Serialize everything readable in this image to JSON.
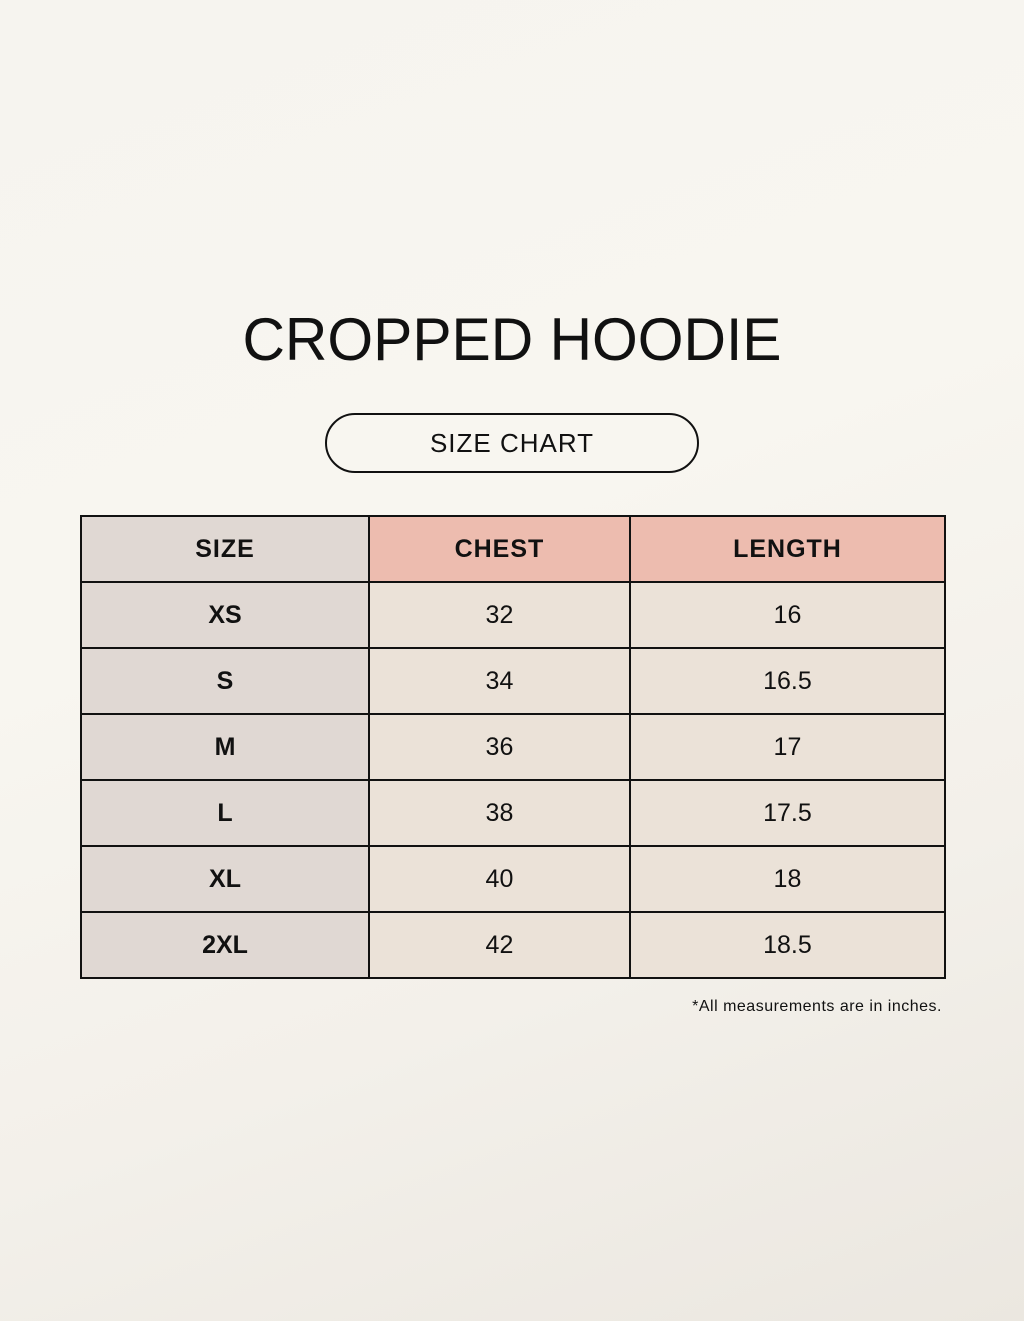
{
  "title": "CROPPED HOODIE",
  "subtitle": "SIZE CHART",
  "colors": {
    "size_column": "#e0d8d3",
    "header_accent": "#edbcaf",
    "cell": "#ebe2d8"
  },
  "table": {
    "headers": [
      "SIZE",
      "CHEST",
      "LENGTH"
    ],
    "rows": [
      [
        "XS",
        "32",
        "16"
      ],
      [
        "S",
        "34",
        "16.5"
      ],
      [
        "M",
        "36",
        "17"
      ],
      [
        "L",
        "38",
        "17.5"
      ],
      [
        "XL",
        "40",
        "18"
      ],
      [
        "2XL",
        "42",
        "18.5"
      ]
    ]
  },
  "note": "*All measurements are in inches."
}
